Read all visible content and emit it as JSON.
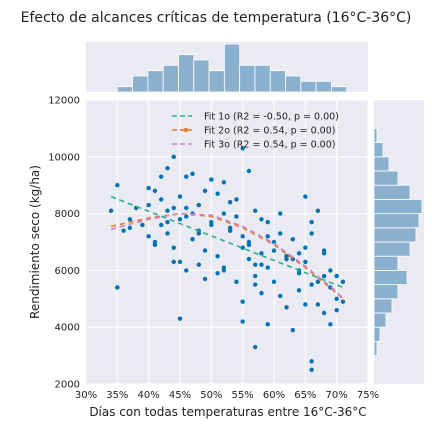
{
  "chart_data": {
    "type": "scatter",
    "title": "Efecto de alcances críticas de temperatura (16°C-36°C)",
    "xlabel": "Días con todas temperaturas entre 16°C-36°C",
    "ylabel": "Rendimiento seco (kg/ha)",
    "xlim": [
      0.3,
      0.75
    ],
    "ylim": [
      2000,
      12000
    ],
    "x_ticks": [
      "30%",
      "35%",
      "40%",
      "45%",
      "50%",
      "55%",
      "60%",
      "65%",
      "70%",
      "75%"
    ],
    "y_ticks": [
      "2000",
      "4000",
      "6000",
      "8000",
      "10000",
      "12000"
    ],
    "grid": true,
    "legend_position": "upper-right",
    "colors": {
      "points": "#0072b2",
      "fit1": "#2ca02c",
      "fit2": "#e87b2c",
      "fit3": "#c983d6",
      "hist": "#8ab0d0",
      "plot_bg": "#eaeaf2"
    },
    "fits": [
      {
        "label": "Fit 1o (R2 = -0.50, p = 0.00)",
        "color": "#24b38c",
        "x": [
          0.34,
          0.71
        ],
        "y": [
          8600,
          5400
        ],
        "marker": false
      },
      {
        "label": "Fit 2o (R2 = 0.54, p = 0.00)",
        "color": "#e87b2c",
        "x": [
          0.34,
          0.4,
          0.45,
          0.5,
          0.55,
          0.6,
          0.65,
          0.7,
          0.71
        ],
        "y": [
          7550,
          7850,
          8000,
          7900,
          7500,
          6900,
          6100,
          5200,
          5000
        ],
        "marker": true
      },
      {
        "label": "Fit 3o (R2 = 0.54, p = 0.00)",
        "color": "#c983d6",
        "x": [
          0.34,
          0.4,
          0.45,
          0.5,
          0.55,
          0.6,
          0.65,
          0.7,
          0.71
        ],
        "y": [
          7450,
          7800,
          8000,
          7950,
          7550,
          6950,
          6150,
          5250,
          5000
        ],
        "marker": false
      }
    ],
    "points": {
      "x": [
        0.34,
        0.35,
        0.35,
        0.36,
        0.37,
        0.37,
        0.38,
        0.39,
        0.4,
        0.4,
        0.41,
        0.41,
        0.42,
        0.42,
        0.43,
        0.43,
        0.44,
        0.44,
        0.44,
        0.45,
        0.45,
        0.46,
        0.46,
        0.47,
        0.47,
        0.48,
        0.48,
        0.49,
        0.49,
        0.5,
        0.5,
        0.51,
        0.51,
        0.52,
        0.52,
        0.53,
        0.53,
        0.54,
        0.54,
        0.55,
        0.55,
        0.55,
        0.56,
        0.56,
        0.57,
        0.57,
        0.58,
        0.58,
        0.59,
        0.59,
        0.6,
        0.6,
        0.61,
        0.61,
        0.62,
        0.62,
        0.63,
        0.63,
        0.64,
        0.64,
        0.65,
        0.65,
        0.66,
        0.66,
        0.67,
        0.67,
        0.68,
        0.68,
        0.69,
        0.69,
        0.7,
        0.7,
        0.71,
        0.71,
        0.42,
        0.45,
        0.48,
        0.52,
        0.55,
        0.57,
        0.59,
        0.61,
        0.64,
        0.66,
        0.69,
        0.4,
        0.43,
        0.47,
        0.5,
        0.53,
        0.56,
        0.58,
        0.62,
        0.65,
        0.68,
        0.41,
        0.44,
        0.46,
        0.49,
        0.51,
        0.54,
        0.57,
        0.6,
        0.63,
        0.67,
        0.7,
        0.45,
        0.52,
        0.58,
        0.64,
        0.43,
        0.48,
        0.56,
        0.62,
        0.68,
        0.46,
        0.53,
        0.59,
        0.66,
        0.55,
        0.57,
        0.65,
        0.66
      ],
      "y": [
        8100,
        9000,
        5400,
        7400,
        7500,
        7800,
        8200,
        7600,
        8900,
        7200,
        8800,
        7000,
        8500,
        7600,
        9600,
        7300,
        10000,
        8200,
        6300,
        8600,
        4300,
        9300,
        7900,
        9400,
        7100,
        8300,
        6200,
        8800,
        5700,
        9200,
        7700,
        8700,
        5900,
        9100,
        6000,
        8400,
        7400,
        8500,
        5600,
        10300,
        7200,
        4900,
        9500,
        6400,
        8100,
        3300,
        7800,
        5200,
        7200,
        4100,
        7000,
        5600,
        8000,
        5100,
        6500,
        4700,
        7100,
        3900,
        6600,
        5300,
        8600,
        4800,
        7300,
        2800,
        8100,
        5600,
        6700,
        4500,
        5400,
        4100,
        5800,
        5000,
        5600,
        4900,
        9300,
        7800,
        7400,
        8000,
        6800,
        5800,
        6100,
        7300,
        6000,
        5500,
        6000,
        8300,
        8100,
        8000,
        7600,
        7400,
        6900,
        6600,
        6400,
        6300,
        5800,
        6900,
        6800,
        6000,
        6700,
        6500,
        7900,
        6200,
        6700,
        6400,
        4800,
        4600,
        6300,
        6100,
        6200,
        5900,
        7700,
        7300,
        7000,
        6500,
        6600,
        8200,
        7500,
        7700,
        7700,
        4200,
        5500,
        6800,
        2500
      ]
    },
    "x_hist": {
      "bin_edges": [
        0.35,
        0.3744,
        0.3988,
        0.4232,
        0.4476,
        0.472,
        0.4964,
        0.5208,
        0.5452,
        0.5696,
        0.594,
        0.6184,
        0.6428,
        0.6672,
        0.6916,
        0.716
      ],
      "counts": [
        1,
        3,
        4,
        5,
        7,
        6,
        4,
        9,
        5,
        5,
        4,
        3,
        2,
        2,
        1
      ]
    },
    "y_hist": {
      "bin_edges": [
        3000,
        3500,
        4000,
        4500,
        5000,
        5500,
        6000,
        6500,
        7000,
        7500,
        8000,
        8500,
        9000,
        9500,
        10000,
        10500,
        11000
      ],
      "counts": [
        1,
        2,
        4,
        6,
        8,
        11,
        8,
        12,
        14,
        15,
        16,
        12,
        8,
        5,
        3,
        1
      ]
    }
  }
}
